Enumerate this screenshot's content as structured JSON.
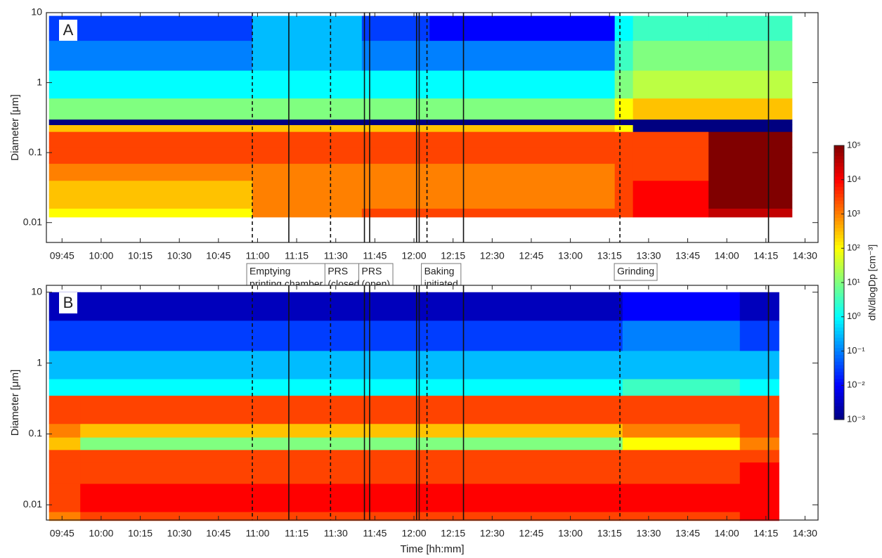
{
  "chart_data": [
    {
      "type": "heatmap",
      "panel_label": "A",
      "ylabel": "Diameter [μm]",
      "log_y": true,
      "xlim": [
        579,
        875
      ],
      "ylim": [
        0.0052,
        10
      ],
      "xticks": [
        {
          "value": 585,
          "label": "09:45"
        },
        {
          "value": 600,
          "label": "10:00"
        },
        {
          "value": 615,
          "label": "10:15"
        },
        {
          "value": 630,
          "label": "10:30"
        },
        {
          "value": 645,
          "label": "10:45"
        },
        {
          "value": 660,
          "label": "11:00"
        },
        {
          "value": 675,
          "label": "11:15"
        },
        {
          "value": 690,
          "label": "11:30"
        },
        {
          "value": 705,
          "label": "11:45"
        },
        {
          "value": 720,
          "label": "12:00"
        },
        {
          "value": 735,
          "label": "12:15"
        },
        {
          "value": 750,
          "label": "12:30"
        },
        {
          "value": 765,
          "label": "12:45"
        },
        {
          "value": 780,
          "label": "13:00"
        },
        {
          "value": 795,
          "label": "13:15"
        },
        {
          "value": 810,
          "label": "13:30"
        },
        {
          "value": 825,
          "label": "13:45"
        },
        {
          "value": 840,
          "label": "14:00"
        },
        {
          "value": 855,
          "label": "14:15"
        },
        {
          "value": 870,
          "label": "14:30"
        }
      ],
      "yticks": [
        0.01,
        0.1,
        1,
        10
      ],
      "x_edges": [
        580,
        658,
        700,
        726,
        797,
        804,
        833,
        865
      ],
      "y_edges": [
        0.012,
        0.016,
        0.025,
        0.04,
        0.07,
        0.12,
        0.2,
        0.25,
        0.3,
        0.6,
        1.5,
        4,
        9
      ],
      "values": [
        [
          100,
          1000,
          3000,
          3000,
          3000,
          10000,
          30000
        ],
        [
          300,
          1000,
          1000,
          1000,
          3000,
          10000,
          100000
        ],
        [
          300,
          1000,
          1000,
          1000,
          3000,
          10000,
          100000
        ],
        [
          1000,
          1000,
          1000,
          1000,
          3000,
          3000,
          100000
        ],
        [
          3000,
          3000,
          3000,
          3000,
          3000,
          3000,
          100000
        ],
        [
          3000,
          3000,
          3000,
          3000,
          3000,
          3000,
          100000
        ],
        [
          300,
          300,
          300,
          300,
          100,
          0.001,
          0.001
        ],
        [
          0.001,
          0.001,
          0.001,
          0.001,
          0.001,
          0.001,
          0.001
        ],
        [
          10,
          10,
          10,
          10,
          100,
          300,
          300
        ],
        [
          1,
          1,
          1,
          1,
          10,
          30,
          30
        ],
        [
          0.1,
          0.3,
          0.1,
          0.1,
          3,
          10,
          10
        ],
        [
          0.03,
          0.3,
          0.03,
          0.01,
          1,
          3,
          3
        ]
      ],
      "events": [
        {
          "x": 658,
          "style": "dashed"
        },
        {
          "x": 672,
          "style": "solid"
        },
        {
          "x": 688,
          "style": "dashed"
        },
        {
          "x": 701,
          "style": "solid"
        },
        {
          "x": 703,
          "style": "solid"
        },
        {
          "x": 721,
          "style": "solid"
        },
        {
          "x": 722,
          "style": "solid"
        },
        {
          "x": 725,
          "style": "dashed"
        },
        {
          "x": 739,
          "style": "solid"
        },
        {
          "x": 799,
          "style": "dashed"
        },
        {
          "x": 856,
          "style": "solid"
        }
      ],
      "annotations": [
        [
          "Emptying",
          "printing chamber"
        ],
        [
          "PRS",
          "(closed)"
        ],
        [
          "PRS",
          "(open)"
        ],
        [
          "Baking",
          "initiated"
        ],
        [
          "Grinding"
        ]
      ],
      "colorbar": {
        "label": "dN/dlogDp [cm⁻³]",
        "lim": [
          0.001,
          100000
        ],
        "ticks": [
          {
            "value": 0.001,
            "label": "10⁻³"
          },
          {
            "value": 0.01,
            "label": "10⁻²"
          },
          {
            "value": 0.1,
            "label": "10⁻¹"
          },
          {
            "value": 1,
            "label": "10⁰"
          },
          {
            "value": 10,
            "label": "10¹"
          },
          {
            "value": 100,
            "label": "10²"
          },
          {
            "value": 1000,
            "label": "10³"
          },
          {
            "value": 10000,
            "label": "10⁴"
          },
          {
            "value": 100000,
            "label": "10⁵"
          }
        ]
      }
    },
    {
      "type": "heatmap",
      "panel_label": "B",
      "ylabel": "Diameter [μm]",
      "xlabel": "Time [hh:mm]",
      "log_y": true,
      "xlim": [
        579,
        875
      ],
      "ylim": [
        0.0061,
        12.5
      ],
      "xticks": [
        {
          "value": 585,
          "label": "09:45"
        },
        {
          "value": 600,
          "label": "10:00"
        },
        {
          "value": 615,
          "label": "10:15"
        },
        {
          "value": 630,
          "label": "10:30"
        },
        {
          "value": 645,
          "label": "10:45"
        },
        {
          "value": 660,
          "label": "11:00"
        },
        {
          "value": 675,
          "label": "11:15"
        },
        {
          "value": 690,
          "label": "11:30"
        },
        {
          "value": 705,
          "label": "11:45"
        },
        {
          "value": 720,
          "label": "12:00"
        },
        {
          "value": 735,
          "label": "12:15"
        },
        {
          "value": 750,
          "label": "12:30"
        },
        {
          "value": 765,
          "label": "12:45"
        },
        {
          "value": 780,
          "label": "13:00"
        },
        {
          "value": 795,
          "label": "13:15"
        },
        {
          "value": 810,
          "label": "13:30"
        },
        {
          "value": 825,
          "label": "13:45"
        },
        {
          "value": 840,
          "label": "14:00"
        },
        {
          "value": 855,
          "label": "14:15"
        },
        {
          "value": 870,
          "label": "14:30"
        }
      ],
      "yticks": [
        0.01,
        0.1,
        1,
        10
      ],
      "x_edges": [
        580,
        592,
        800,
        845,
        860
      ],
      "y_edges": [
        0.006,
        0.008,
        0.02,
        0.04,
        0.06,
        0.09,
        0.14,
        0.35,
        0.6,
        1.5,
        4,
        10
      ],
      "values": [
        [
          1000,
          3000,
          3000,
          10000
        ],
        [
          3000,
          10000,
          10000,
          10000
        ],
        [
          3000,
          3000,
          3000,
          10000
        ],
        [
          3000,
          3000,
          3000,
          3000
        ],
        [
          300,
          10,
          100,
          1000
        ],
        [
          1000,
          300,
          1000,
          3000
        ],
        [
          3000,
          3000,
          3000,
          3000
        ],
        [
          1,
          1,
          3,
          1
        ],
        [
          0.3,
          0.3,
          0.3,
          0.3
        ],
        [
          0.03,
          0.03,
          0.1,
          0.03
        ],
        [
          0.003,
          0.003,
          0.01,
          0.003
        ]
      ],
      "events": [
        {
          "x": 658,
          "style": "dashed"
        },
        {
          "x": 672,
          "style": "solid"
        },
        {
          "x": 688,
          "style": "dashed"
        },
        {
          "x": 701,
          "style": "solid"
        },
        {
          "x": 703,
          "style": "solid"
        },
        {
          "x": 721,
          "style": "solid"
        },
        {
          "x": 722,
          "style": "solid"
        },
        {
          "x": 725,
          "style": "dashed"
        },
        {
          "x": 739,
          "style": "solid"
        },
        {
          "x": 799,
          "style": "dashed"
        },
        {
          "x": 856,
          "style": "solid"
        }
      ]
    }
  ]
}
